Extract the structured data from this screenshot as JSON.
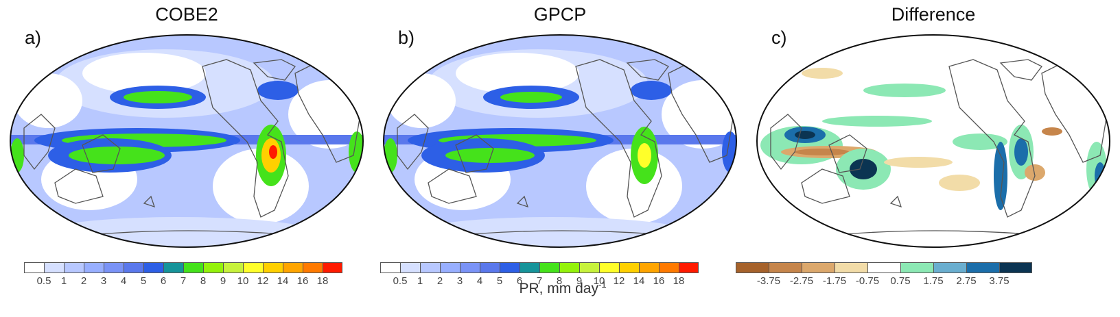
{
  "panels": [
    {
      "id": "a",
      "label": "a)",
      "title": "COBE2"
    },
    {
      "id": "b",
      "label": "b)",
      "title": "GPCP"
    },
    {
      "id": "c",
      "label": "c)",
      "title": "Difference"
    }
  ],
  "precip_colorbar": {
    "colors": [
      "#ffffff",
      "#d6e0ff",
      "#b8c8ff",
      "#98afff",
      "#7a93f7",
      "#5a78ec",
      "#2d5fe6",
      "#16949a",
      "#45e21b",
      "#94f20b",
      "#c7f23c",
      "#ffff2a",
      "#ffd000",
      "#ffa500",
      "#ff7a00",
      "#ff1a00"
    ],
    "ticks": [
      "0.5",
      "1",
      "2",
      "3",
      "4",
      "5",
      "6",
      "7",
      "8",
      "9",
      "10",
      "12",
      "14",
      "16",
      "18"
    ]
  },
  "diff_colorbar": {
    "colors": [
      "#a6622b",
      "#c6854b",
      "#dca86c",
      "#f2dca8",
      "#ffffff",
      "#8ce8b4",
      "#6aaecf",
      "#1b6eaa",
      "#0b3452"
    ],
    "ticks": [
      "-3.75",
      "-2.75",
      "-1.75",
      "-0.75",
      "0.75",
      "1.75",
      "2.75",
      "3.75"
    ]
  },
  "unit_label": {
    "main": "PR, mm day",
    "sup": "-1"
  }
}
